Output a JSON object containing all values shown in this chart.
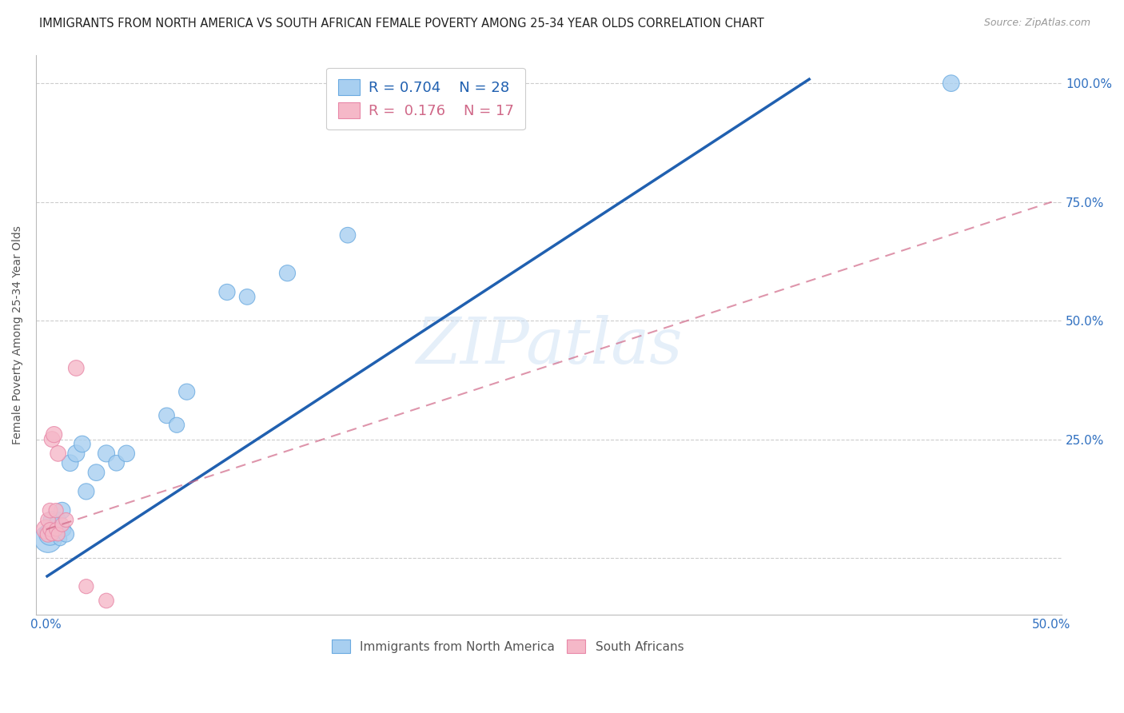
{
  "title": "IMMIGRANTS FROM NORTH AMERICA VS SOUTH AFRICAN FEMALE POVERTY AMONG 25-34 YEAR OLDS CORRELATION CHART",
  "source": "Source: ZipAtlas.com",
  "ylabel": "Female Poverty Among 25-34 Year Olds",
  "xlim": [
    -0.005,
    0.505
  ],
  "ylim": [
    -0.12,
    1.06
  ],
  "x_ticks": [
    0.0,
    0.1,
    0.2,
    0.3,
    0.4,
    0.5
  ],
  "x_tick_labels": [
    "0.0%",
    "",
    "",
    "",
    "",
    "50.0%"
  ],
  "y_ticks": [
    0.0,
    0.25,
    0.5,
    0.75,
    1.0
  ],
  "y_tick_labels_right": [
    "",
    "25.0%",
    "50.0%",
    "75.0%",
    "100.0%"
  ],
  "watermark": "ZIPatlas",
  "blue_R": 0.704,
  "blue_N": 28,
  "pink_R": 0.176,
  "pink_N": 17,
  "blue_color": "#a8cff0",
  "pink_color": "#f5b8c8",
  "blue_edge_color": "#6aaae0",
  "pink_edge_color": "#e888a8",
  "blue_line_color": "#2060b0",
  "pink_line_color": "#d06888",
  "grid_color": "#c8c8c8",
  "blue_scatter_x": [
    0.001,
    0.002,
    0.003,
    0.003,
    0.004,
    0.005,
    0.005,
    0.006,
    0.007,
    0.008,
    0.009,
    0.01,
    0.012,
    0.015,
    0.018,
    0.02,
    0.025,
    0.03,
    0.035,
    0.04,
    0.06,
    0.065,
    0.07,
    0.09,
    0.1,
    0.12,
    0.15,
    0.45
  ],
  "blue_scatter_y": [
    0.04,
    0.05,
    0.06,
    0.08,
    0.06,
    0.05,
    0.07,
    0.08,
    0.04,
    0.1,
    0.06,
    0.05,
    0.2,
    0.22,
    0.24,
    0.14,
    0.18,
    0.22,
    0.2,
    0.22,
    0.3,
    0.28,
    0.35,
    0.56,
    0.55,
    0.6,
    0.68,
    1.0
  ],
  "blue_scatter_sizes": [
    600,
    400,
    200,
    250,
    180,
    160,
    180,
    200,
    150,
    220,
    160,
    200,
    220,
    230,
    220,
    210,
    220,
    230,
    200,
    220,
    200,
    190,
    210,
    210,
    200,
    210,
    200,
    220
  ],
  "pink_scatter_x": [
    0.0,
    0.001,
    0.001,
    0.002,
    0.002,
    0.003,
    0.003,
    0.004,
    0.005,
    0.005,
    0.006,
    0.006,
    0.008,
    0.01,
    0.015,
    0.02,
    0.03
  ],
  "pink_scatter_y": [
    0.06,
    0.05,
    0.08,
    0.06,
    0.1,
    0.05,
    0.25,
    0.26,
    0.06,
    0.1,
    0.05,
    0.22,
    0.07,
    0.08,
    0.4,
    -0.06,
    -0.09
  ],
  "pink_scatter_sizes": [
    300,
    200,
    180,
    160,
    180,
    150,
    200,
    210,
    150,
    170,
    150,
    200,
    160,
    170,
    200,
    170,
    180
  ],
  "blue_line_x0": 0.0,
  "blue_line_y0": -0.04,
  "blue_line_x1": 0.38,
  "blue_line_y1": 1.01,
  "pink_line_x0": 0.0,
  "pink_line_y0": 0.06,
  "pink_line_x1": 0.5,
  "pink_line_y1": 0.75
}
